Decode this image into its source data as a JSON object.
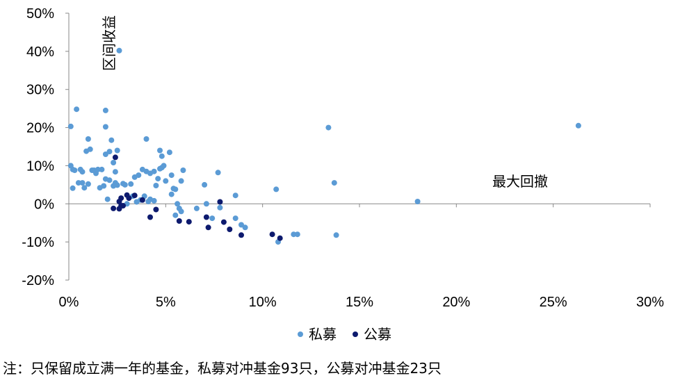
{
  "chart_data": {
    "type": "scatter",
    "title": "",
    "xlabel": "最大回撤",
    "ylabel": "区间收益",
    "xlim": [
      0,
      0.3
    ],
    "ylim": [
      -0.2,
      0.5
    ],
    "x_ticks": [
      "0%",
      "5%",
      "10%",
      "15%",
      "20%",
      "25%",
      "30%"
    ],
    "y_ticks": [
      "50%",
      "40%",
      "30%",
      "20%",
      "10%",
      "0%",
      "-10%",
      "-20%"
    ],
    "legend_position": "bottom-center",
    "series": [
      {
        "name": "私募",
        "color": "#5B9BD5",
        "points": [
          [
            0.001,
            0.203
          ],
          [
            0.004,
            0.248
          ],
          [
            0.019,
            0.245
          ],
          [
            0.026,
            0.402
          ],
          [
            0.134,
            0.2
          ],
          [
            0.263,
            0.205
          ],
          [
            0.001,
            0.1
          ],
          [
            0.002,
            0.09
          ],
          [
            0.006,
            0.09
          ],
          [
            0.01,
            0.17
          ],
          [
            0.011,
            0.143
          ],
          [
            0.014,
            0.08
          ],
          [
            0.019,
            0.13
          ],
          [
            0.019,
            0.202
          ],
          [
            0.021,
            0.137
          ],
          [
            0.022,
            0.167
          ],
          [
            0.023,
            0.108
          ],
          [
            0.025,
            0.14
          ],
          [
            0.009,
            0.138
          ],
          [
            0.013,
            0.088
          ],
          [
            0.007,
            0.084
          ],
          [
            0.002,
            0.041
          ],
          [
            0.005,
            0.055
          ],
          [
            0.007,
            0.055
          ],
          [
            0.008,
            0.042
          ],
          [
            0.01,
            0.052
          ],
          [
            0.016,
            0.042
          ],
          [
            0.018,
            0.047
          ],
          [
            0.019,
            0.065
          ],
          [
            0.02,
            0.012
          ],
          [
            0.021,
            0.062
          ],
          [
            0.023,
            0.047
          ],
          [
            0.024,
            0.084
          ],
          [
            0.024,
            0.055
          ],
          [
            0.025,
            0.049
          ],
          [
            0.029,
            0.05
          ],
          [
            0.032,
            0.052
          ],
          [
            0.034,
            0.07
          ],
          [
            0.036,
            0.075
          ],
          [
            0.038,
            0.09
          ],
          [
            0.04,
            0.085
          ],
          [
            0.04,
            0.17
          ],
          [
            0.041,
            0.006
          ],
          [
            0.042,
            0.012
          ],
          [
            0.042,
            0.08
          ],
          [
            0.044,
            0.085
          ],
          [
            0.045,
            0.048
          ],
          [
            0.046,
            0.066
          ],
          [
            0.047,
            0.14
          ],
          [
            0.048,
            0.125
          ],
          [
            0.048,
            0.095
          ],
          [
            0.049,
            0.1
          ],
          [
            0.05,
            0.06
          ],
          [
            0.052,
            0.135
          ],
          [
            0.053,
            0.025
          ],
          [
            0.053,
            0.075
          ],
          [
            0.054,
            0.04
          ],
          [
            0.055,
            0.038
          ],
          [
            0.056,
            0.0
          ],
          [
            0.057,
            -0.012
          ],
          [
            0.058,
            -0.02
          ],
          [
            0.058,
            0.06
          ],
          [
            0.059,
            0.088
          ],
          [
            0.055,
            -0.03
          ],
          [
            0.066,
            -0.012
          ],
          [
            0.07,
            0.05
          ],
          [
            0.071,
            0.0
          ],
          [
            0.074,
            -0.038
          ],
          [
            0.077,
            0.082
          ],
          [
            0.078,
            -0.01
          ],
          [
            0.086,
            -0.038
          ],
          [
            0.086,
            0.022
          ],
          [
            0.089,
            -0.055
          ],
          [
            0.091,
            -0.062
          ],
          [
            0.107,
            0.038
          ],
          [
            0.108,
            -0.1
          ],
          [
            0.116,
            -0.08
          ],
          [
            0.118,
            -0.08
          ],
          [
            0.137,
            0.055
          ],
          [
            0.138,
            -0.082
          ],
          [
            0.18,
            0.006
          ],
          [
            0.03,
            0.0
          ],
          [
            0.037,
            0.01
          ],
          [
            0.044,
            0.008
          ],
          [
            0.039,
            0.02
          ],
          [
            0.047,
            0.092
          ],
          [
            0.015,
            0.09
          ],
          [
            0.003,
            0.088
          ],
          [
            0.028,
            0.053
          ],
          [
            0.035,
            0.005
          ],
          [
            0.012,
            0.088
          ],
          [
            0.033,
            0.02
          ],
          [
            0.017,
            0.09
          ]
        ]
      },
      {
        "name": "公募",
        "color": "#0D1A6E",
        "points": [
          [
            0.024,
            0.122
          ],
          [
            0.023,
            -0.012
          ],
          [
            0.026,
            -0.013
          ],
          [
            0.026,
            0.006
          ],
          [
            0.027,
            0.015
          ],
          [
            0.028,
            -0.005
          ],
          [
            0.03,
            0.023
          ],
          [
            0.031,
            0.015
          ],
          [
            0.034,
            0.022
          ],
          [
            0.038,
            0.01
          ],
          [
            0.042,
            -0.035
          ],
          [
            0.045,
            -0.015
          ],
          [
            0.057,
            -0.045
          ],
          [
            0.062,
            -0.047
          ],
          [
            0.071,
            -0.035
          ],
          [
            0.072,
            -0.062
          ],
          [
            0.078,
            0.005
          ],
          [
            0.08,
            -0.048
          ],
          [
            0.083,
            -0.067
          ],
          [
            0.089,
            -0.082
          ],
          [
            0.105,
            -0.08
          ],
          [
            0.109,
            -0.09
          ],
          [
            0.027,
            -0.005
          ]
        ]
      }
    ]
  },
  "legend": {
    "items": [
      "私募",
      "公募"
    ]
  },
  "note": "注：只保留成立满一年的基金，私募对冲基金93只，公募对冲基金23只"
}
